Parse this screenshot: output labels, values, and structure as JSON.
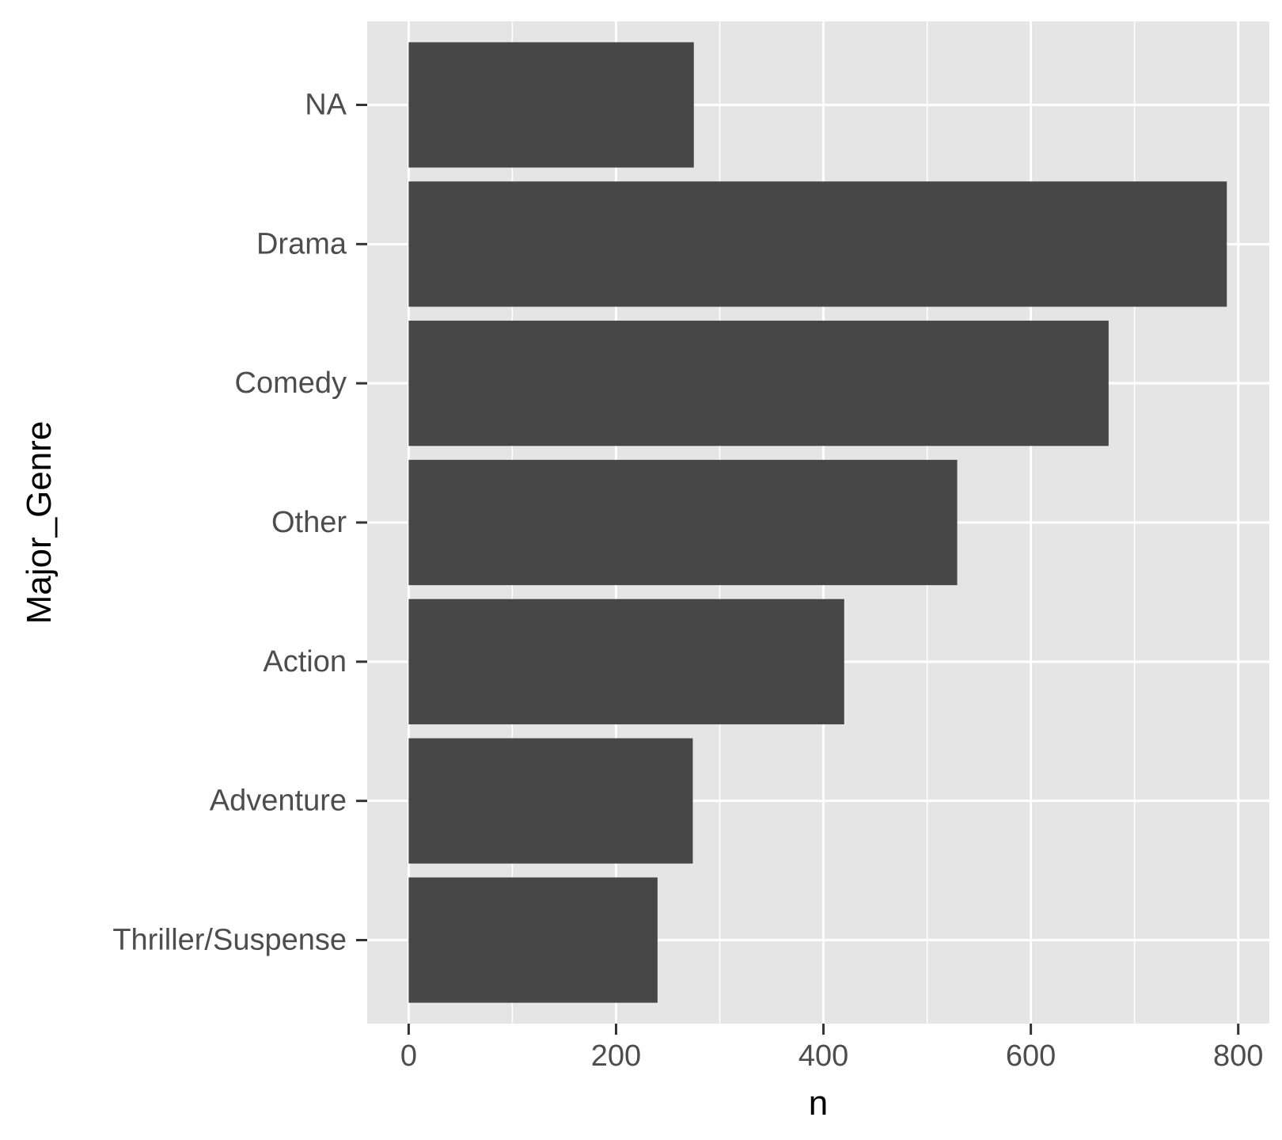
{
  "chart_data": {
    "type": "bar",
    "orientation": "horizontal",
    "categories": [
      "NA",
      "Drama",
      "Comedy",
      "Other",
      "Action",
      "Adventure",
      "Thriller/Suspense"
    ],
    "values": [
      275,
      789,
      675,
      529,
      420,
      274,
      240
    ],
    "xlabel": "n",
    "ylabel": "Major_Genre",
    "xlim": [
      -40,
      830
    ],
    "x_ticks": [
      0,
      200,
      400,
      600,
      800
    ],
    "grid": true,
    "colors": {
      "bar": "#474747",
      "panel": "#e5e5e5",
      "grid": "#ffffff"
    }
  }
}
